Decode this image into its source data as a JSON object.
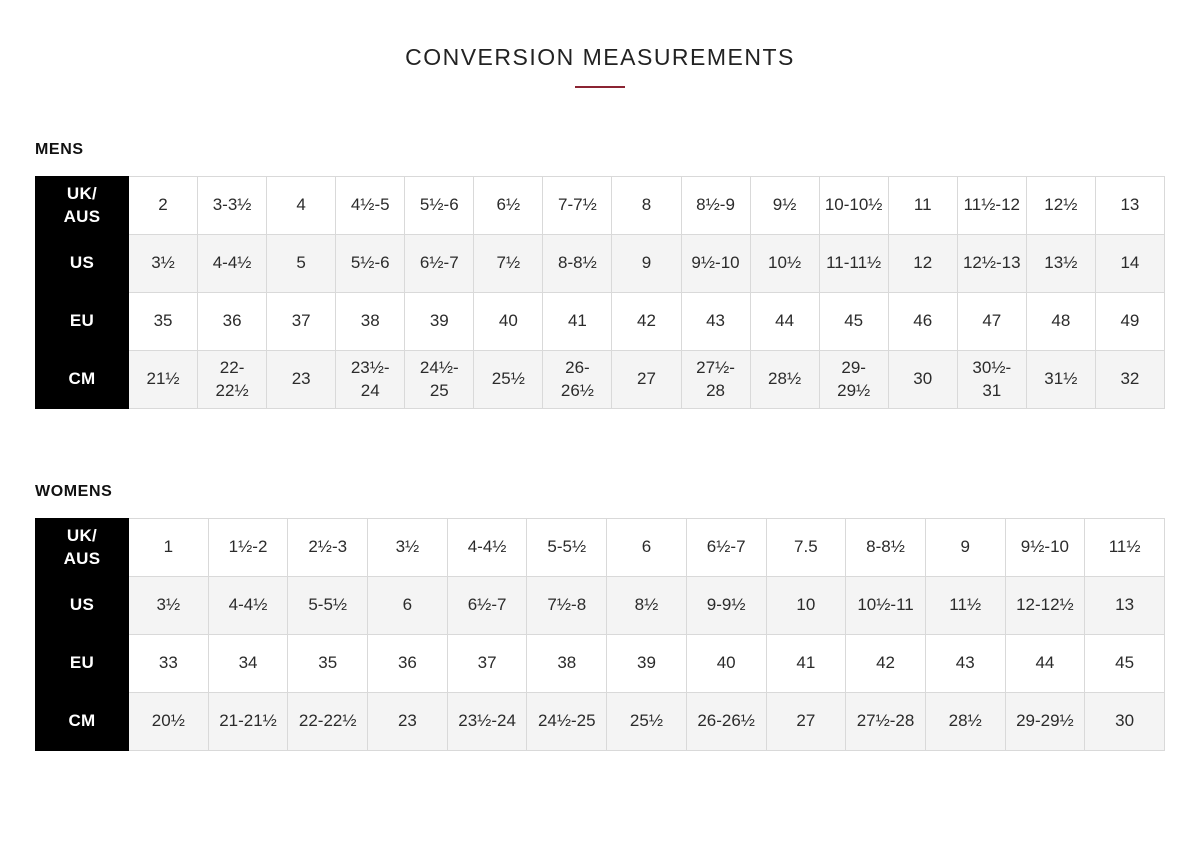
{
  "title": {
    "text": "CONVERSION MEASUREMENTS"
  },
  "colors": {
    "accent_underline": "#8b2433",
    "row_header_bg": "#000000",
    "row_header_text": "#ffffff",
    "stripe_bg": "#f4f4f4",
    "cell_border": "#d9d9d9"
  },
  "sections": [
    {
      "label": "MENS",
      "rows": [
        {
          "key": "uk-aus",
          "header": "UK/\nAUS",
          "cells": [
            "2",
            "3-3½",
            "4",
            "4½-5",
            "5½-6",
            "6½",
            "7-7½",
            "8",
            "8½-9",
            "9½",
            "10-10½",
            "11",
            "11½-12",
            "12½",
            "13"
          ]
        },
        {
          "key": "us",
          "header": "US",
          "cells": [
            "3½",
            "4-4½",
            "5",
            "5½-6",
            "6½-7",
            "7½",
            "8-8½",
            "9",
            "9½-10",
            "10½",
            "11-11½",
            "12",
            "12½-13",
            "13½",
            "14"
          ]
        },
        {
          "key": "eu",
          "header": "EU",
          "cells": [
            "35",
            "36",
            "37",
            "38",
            "39",
            "40",
            "41",
            "42",
            "43",
            "44",
            "45",
            "46",
            "47",
            "48",
            "49"
          ]
        },
        {
          "key": "cm",
          "header": "CM",
          "cells": [
            "21½",
            "22-\n22½",
            "23",
            "23½-\n24",
            "24½-\n25",
            "25½",
            "26-\n26½",
            "27",
            "27½-\n28",
            "28½",
            "29-\n29½",
            "30",
            "30½-\n31",
            "31½",
            "32"
          ]
        }
      ]
    },
    {
      "label": "WOMENS",
      "rows": [
        {
          "key": "uk-aus",
          "header": "UK/\nAUS",
          "cells": [
            "1",
            "1½-2",
            "2½-3",
            "3½",
            "4-4½",
            "5-5½",
            "6",
            "6½-7",
            "7.5",
            "8-8½",
            "9",
            "9½-10",
            "11½"
          ]
        },
        {
          "key": "us",
          "header": "US",
          "cells": [
            "3½",
            "4-4½",
            "5-5½",
            "6",
            "6½-7",
            "7½-8",
            "8½",
            "9-9½",
            "10",
            "10½-11",
            "11½",
            "12-12½",
            "13"
          ]
        },
        {
          "key": "eu",
          "header": "EU",
          "cells": [
            "33",
            "34",
            "35",
            "36",
            "37",
            "38",
            "39",
            "40",
            "41",
            "42",
            "43",
            "44",
            "45"
          ]
        },
        {
          "key": "cm",
          "header": "CM",
          "cells": [
            "20½",
            "21-21½",
            "22-22½",
            "23",
            "23½-24",
            "24½-25",
            "25½",
            "26-26½",
            "27",
            "27½-28",
            "28½",
            "29-29½",
            "30"
          ]
        }
      ]
    }
  ]
}
